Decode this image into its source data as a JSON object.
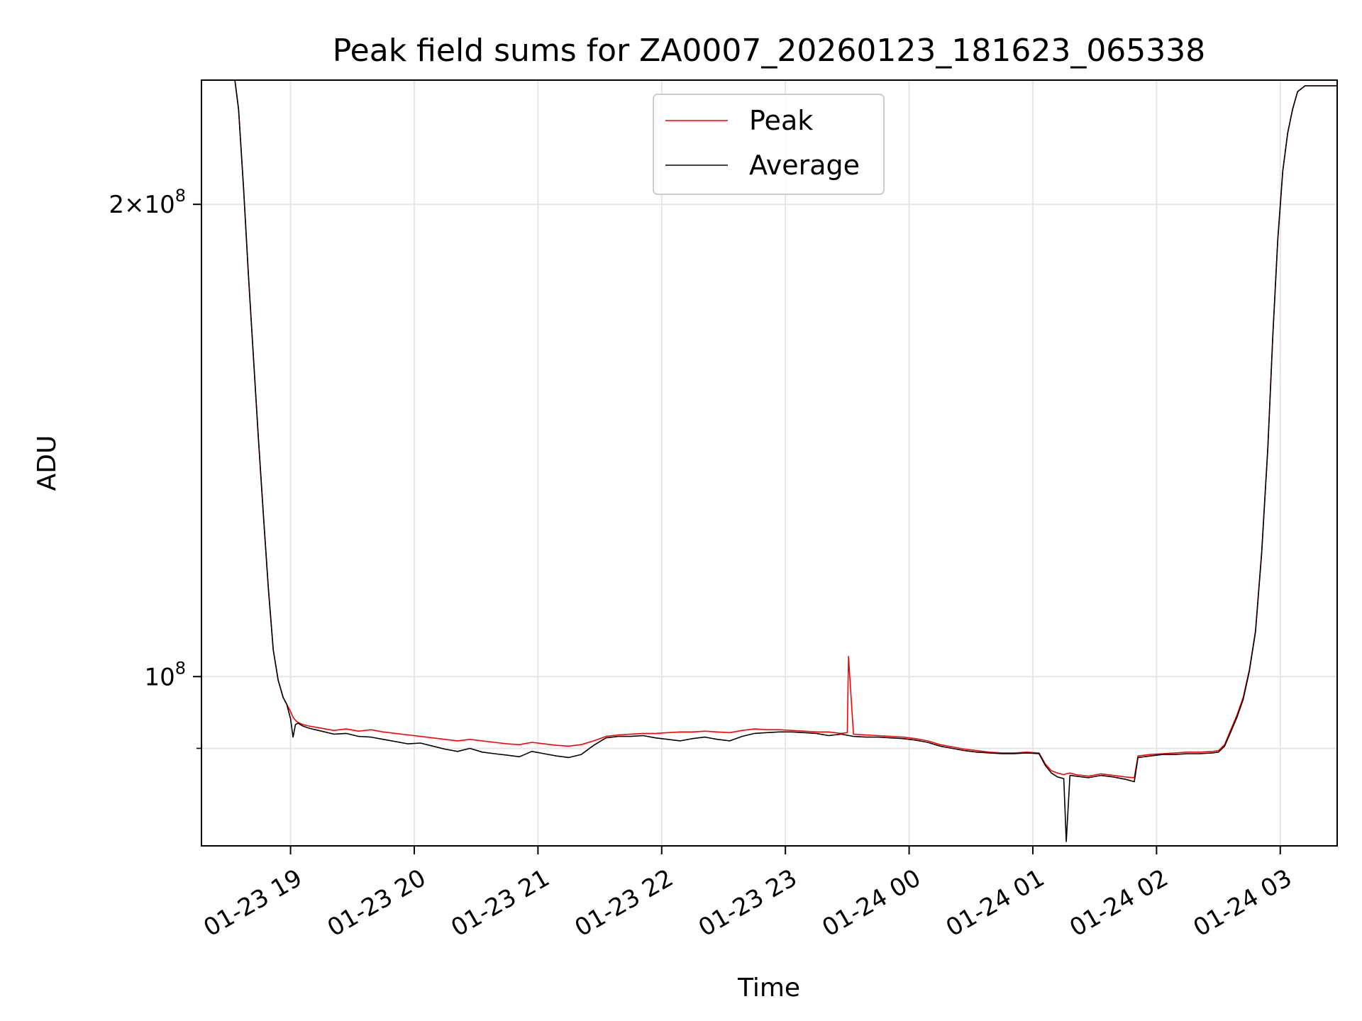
{
  "chart_data": {
    "type": "line",
    "title": "Peak field sums for ZA0007_20260123_181623_065338",
    "xlabel": "Time",
    "ylabel": "ADU",
    "y_scale": "log",
    "ylim": [
      78000000,
      240000000
    ],
    "x_unit": "hours since 01-23 18:00",
    "xlim": [
      0.28,
      9.46
    ],
    "grid": true,
    "legend_position": "upper center",
    "x_ticks": [
      {
        "value": 1,
        "label": "01-23 19"
      },
      {
        "value": 2,
        "label": "01-23 20"
      },
      {
        "value": 3,
        "label": "01-23 21"
      },
      {
        "value": 4,
        "label": "01-23 22"
      },
      {
        "value": 5,
        "label": "01-23 23"
      },
      {
        "value": 6,
        "label": "01-24 00"
      },
      {
        "value": 7,
        "label": "01-24 01"
      },
      {
        "value": 8,
        "label": "01-24 02"
      },
      {
        "value": 9,
        "label": "01-24 03"
      }
    ],
    "y_ticks": [
      {
        "value": 100000000,
        "base": "10",
        "exp": "8",
        "prefix": ""
      },
      {
        "value": 200000000,
        "base": "10",
        "exp": "8",
        "prefix": "2×"
      }
    ],
    "y_minor_ticks": [
      90000000
    ],
    "series": [
      {
        "name": "Peak",
        "color": "#ff0000",
        "x": [
          0.28,
          0.55,
          0.58,
          0.62,
          0.66,
          0.7,
          0.74,
          0.78,
          0.82,
          0.86,
          0.9,
          0.94,
          0.97,
          1.0,
          1.02,
          1.04,
          1.06,
          1.1,
          1.15,
          1.25,
          1.35,
          1.45,
          1.55,
          1.65,
          1.75,
          1.85,
          1.95,
          2.05,
          2.15,
          2.25,
          2.35,
          2.45,
          2.55,
          2.65,
          2.75,
          2.85,
          2.95,
          3.05,
          3.15,
          3.25,
          3.35,
          3.45,
          3.55,
          3.65,
          3.75,
          3.85,
          3.95,
          4.05,
          4.15,
          4.25,
          4.35,
          4.45,
          4.55,
          4.65,
          4.75,
          4.85,
          4.95,
          5.05,
          5.15,
          5.25,
          5.35,
          5.45,
          5.5,
          5.51,
          5.55,
          5.65,
          5.75,
          5.85,
          5.95,
          6.05,
          6.15,
          6.25,
          6.35,
          6.45,
          6.55,
          6.65,
          6.75,
          6.85,
          6.95,
          7.05,
          7.1,
          7.15,
          7.2,
          7.25,
          7.27,
          7.3,
          7.35,
          7.45,
          7.55,
          7.65,
          7.75,
          7.82,
          7.85,
          7.95,
          8.05,
          8.15,
          8.25,
          8.35,
          8.45,
          8.5,
          8.55,
          8.6,
          8.65,
          8.7,
          8.75,
          8.8,
          8.85,
          8.9,
          8.94,
          8.98,
          9.02,
          9.06,
          9.1,
          9.14,
          9.2,
          9.46
        ],
        "values": [
          240000000,
          240000000,
          230000000,
          205000000,
          180000000,
          160000000,
          142000000,
          127000000,
          114000000,
          104000000,
          99500000,
          97000000,
          96000000,
          95000000,
          94200000,
          93800000,
          93500000,
          93200000,
          93000000,
          92700000,
          92400000,
          92600000,
          92300000,
          92500000,
          92200000,
          92000000,
          91800000,
          91600000,
          91400000,
          91200000,
          91000000,
          91200000,
          91000000,
          90800000,
          90600000,
          90500000,
          90800000,
          90600000,
          90400000,
          90300000,
          90500000,
          91000000,
          91600000,
          91800000,
          91900000,
          92000000,
          92000000,
          92100000,
          92200000,
          92200000,
          92300000,
          92200000,
          92100000,
          92400000,
          92600000,
          92500000,
          92500000,
          92400000,
          92300000,
          92200000,
          92200000,
          92000000,
          92100000,
          103000000,
          91900000,
          91800000,
          91700000,
          91600000,
          91500000,
          91300000,
          91000000,
          90500000,
          90200000,
          89900000,
          89700000,
          89500000,
          89400000,
          89400000,
          89500000,
          89400000,
          88000000,
          87100000,
          86800000,
          86600000,
          86700000,
          86800000,
          86600000,
          86400000,
          86700000,
          86500000,
          86300000,
          86200000,
          89000000,
          89200000,
          89300000,
          89400000,
          89500000,
          89500000,
          89600000,
          89700000,
          90500000,
          92500000,
          94500000,
          97000000,
          101000000,
          107000000,
          120000000,
          140000000,
          165000000,
          190000000,
          210000000,
          222000000,
          230000000,
          236000000,
          238000000,
          238000000
        ]
      },
      {
        "name": "Average",
        "color": "#000000",
        "x": [
          0.28,
          0.55,
          0.58,
          0.62,
          0.66,
          0.7,
          0.74,
          0.78,
          0.82,
          0.86,
          0.9,
          0.94,
          0.97,
          1.0,
          1.02,
          1.04,
          1.06,
          1.1,
          1.15,
          1.25,
          1.35,
          1.45,
          1.55,
          1.65,
          1.75,
          1.85,
          1.95,
          2.05,
          2.15,
          2.25,
          2.35,
          2.45,
          2.55,
          2.65,
          2.75,
          2.85,
          2.95,
          3.05,
          3.15,
          3.25,
          3.35,
          3.45,
          3.55,
          3.65,
          3.75,
          3.85,
          3.95,
          4.05,
          4.15,
          4.25,
          4.35,
          4.45,
          4.55,
          4.65,
          4.75,
          4.85,
          4.95,
          5.05,
          5.15,
          5.25,
          5.35,
          5.45,
          5.55,
          5.65,
          5.75,
          5.85,
          5.95,
          6.05,
          6.15,
          6.25,
          6.35,
          6.45,
          6.55,
          6.65,
          6.75,
          6.85,
          6.95,
          7.05,
          7.1,
          7.15,
          7.2,
          7.25,
          7.27,
          7.3,
          7.35,
          7.45,
          7.55,
          7.65,
          7.75,
          7.82,
          7.85,
          7.95,
          8.05,
          8.15,
          8.25,
          8.35,
          8.45,
          8.5,
          8.55,
          8.6,
          8.65,
          8.7,
          8.75,
          8.8,
          8.85,
          8.9,
          8.94,
          8.98,
          9.02,
          9.06,
          9.1,
          9.14,
          9.2,
          9.46
        ],
        "values": [
          240000000,
          240000000,
          230000000,
          205000000,
          180000000,
          160000000,
          142000000,
          127000000,
          114000000,
          104000000,
          99500000,
          97000000,
          96000000,
          94000000,
          91500000,
          93200000,
          93400000,
          93000000,
          92700000,
          92300000,
          91900000,
          92000000,
          91600000,
          91500000,
          91200000,
          90900000,
          90600000,
          90700000,
          90300000,
          89900000,
          89600000,
          90000000,
          89500000,
          89300000,
          89100000,
          88900000,
          89600000,
          89300000,
          89000000,
          88800000,
          89200000,
          90400000,
          91400000,
          91600000,
          91600000,
          91700000,
          91400000,
          91200000,
          91000000,
          91300000,
          91500000,
          91200000,
          91000000,
          91600000,
          92000000,
          92100000,
          92200000,
          92200000,
          92100000,
          92000000,
          91700000,
          91900000,
          91600000,
          91500000,
          91500000,
          91400000,
          91300000,
          91100000,
          90800000,
          90300000,
          90000000,
          89700000,
          89500000,
          89400000,
          89300000,
          89300000,
          89400000,
          89300000,
          87800000,
          86800000,
          86300000,
          86100000,
          78500000,
          86500000,
          86400000,
          86200000,
          86500000,
          86300000,
          86000000,
          85700000,
          88800000,
          89000000,
          89200000,
          89200000,
          89300000,
          89300000,
          89400000,
          89500000,
          90300000,
          92200000,
          94200000,
          96700000,
          100800000,
          106800000,
          120000000,
          140000000,
          165000000,
          190000000,
          210000000,
          222000000,
          230000000,
          236000000,
          238000000,
          238000000
        ]
      }
    ]
  }
}
